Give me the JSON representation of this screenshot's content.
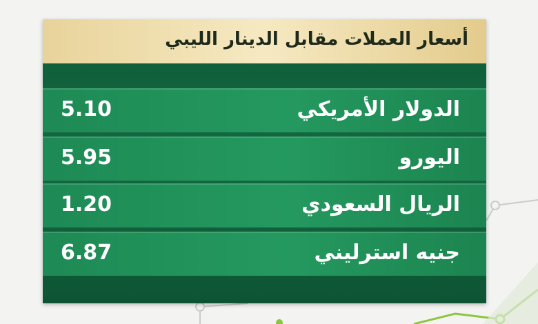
{
  "header": {
    "title": "أسعار العملات مقابل الدينار الليبي"
  },
  "table": {
    "rows": [
      [
        "الدولار الأمريكي",
        "5.10"
      ],
      [
        "اليورو",
        "5.95"
      ],
      [
        "الريال السعودي",
        "1.20"
      ],
      [
        "جنيه استرليني",
        "6.87"
      ]
    ]
  }
}
